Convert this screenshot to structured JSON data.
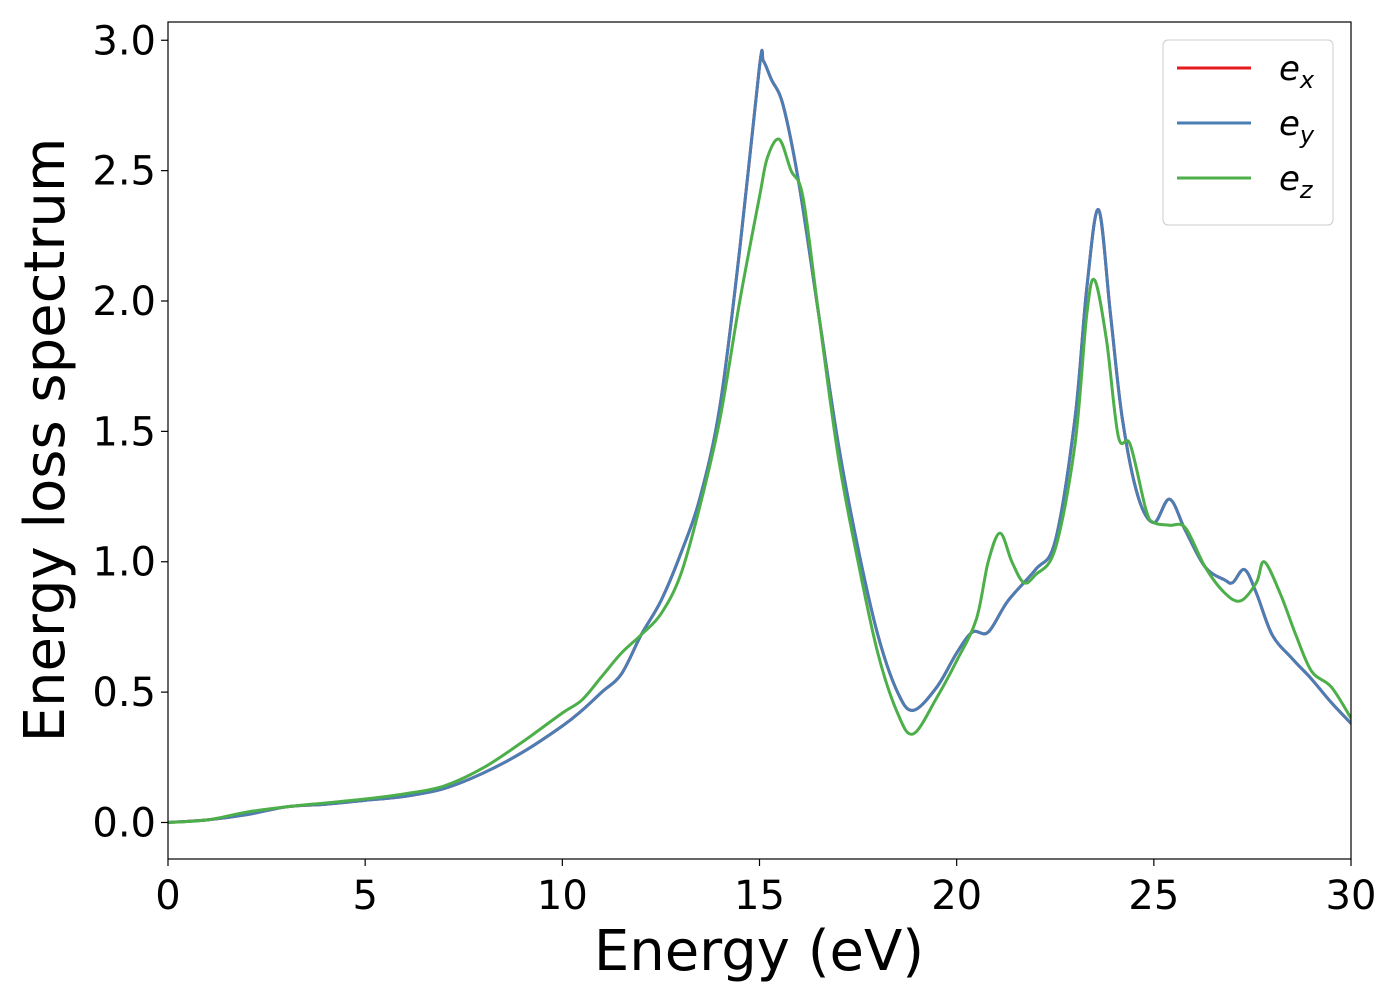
{
  "chart_data": {
    "type": "line",
    "title": "",
    "xlabel": "Energy (eV)",
    "ylabel": "Energy loss spectrum",
    "xlim": [
      0,
      30
    ],
    "ylim": [
      -0.14,
      3.07
    ],
    "xticks": [
      0,
      5,
      10,
      15,
      20,
      25,
      30
    ],
    "xtick_labels": [
      "0",
      "5",
      "10",
      "15",
      "20",
      "25",
      "30"
    ],
    "yticks": [
      0.0,
      0.5,
      1.0,
      1.5,
      2.0,
      2.5,
      3.0
    ],
    "ytick_labels": [
      "0.0",
      "0.5",
      "1.0",
      "1.5",
      "2.0",
      "2.5",
      "3.0"
    ],
    "grid": false,
    "legend_position": "top-right",
    "series": [
      {
        "name": "e",
        "subscript": "x",
        "color": "#e41a1c",
        "x": [
          0,
          1,
          2,
          3,
          4,
          5,
          6,
          7,
          8,
          9,
          10,
          10.5,
          11,
          11.5,
          12,
          12.5,
          13,
          13.5,
          14,
          14.5,
          15,
          15.1,
          15.3,
          15.6,
          16,
          16.5,
          17,
          17.5,
          18,
          18.5,
          18.9,
          19.5,
          20,
          20.4,
          20.8,
          21.3,
          22,
          22.5,
          23,
          23.3,
          23.6,
          23.9,
          24.2,
          24.6,
          25,
          25.4,
          25.8,
          26.3,
          26.8,
          27,
          27.3,
          27.6,
          28,
          28.5,
          29,
          29.5,
          30
        ],
        "y": [
          0.0,
          0.01,
          0.03,
          0.06,
          0.07,
          0.085,
          0.1,
          0.13,
          0.19,
          0.27,
          0.37,
          0.43,
          0.5,
          0.57,
          0.72,
          0.85,
          1.03,
          1.25,
          1.6,
          2.2,
          2.9,
          2.92,
          2.85,
          2.75,
          2.45,
          1.95,
          1.45,
          1.05,
          0.72,
          0.5,
          0.43,
          0.52,
          0.65,
          0.73,
          0.73,
          0.85,
          0.97,
          1.08,
          1.55,
          2.05,
          2.35,
          1.95,
          1.55,
          1.25,
          1.15,
          1.24,
          1.12,
          0.98,
          0.93,
          0.92,
          0.97,
          0.88,
          0.72,
          0.63,
          0.55,
          0.46,
          0.38
        ]
      },
      {
        "name": "e",
        "subscript": "y",
        "color": "#4a7eb4",
        "x": [
          0,
          1,
          2,
          3,
          4,
          5,
          6,
          7,
          8,
          9,
          10,
          10.5,
          11,
          11.5,
          12,
          12.5,
          13,
          13.5,
          14,
          14.5,
          15,
          15.1,
          15.3,
          15.6,
          16,
          16.5,
          17,
          17.5,
          18,
          18.5,
          18.9,
          19.5,
          20,
          20.4,
          20.8,
          21.3,
          22,
          22.5,
          23,
          23.3,
          23.6,
          23.9,
          24.2,
          24.6,
          25,
          25.4,
          25.8,
          26.3,
          26.8,
          27,
          27.3,
          27.6,
          28,
          28.5,
          29,
          29.5,
          30
        ],
        "y": [
          0.0,
          0.01,
          0.03,
          0.06,
          0.07,
          0.085,
          0.1,
          0.13,
          0.19,
          0.27,
          0.37,
          0.43,
          0.5,
          0.57,
          0.72,
          0.85,
          1.03,
          1.25,
          1.6,
          2.2,
          2.9,
          2.92,
          2.85,
          2.75,
          2.45,
          1.95,
          1.45,
          1.05,
          0.72,
          0.5,
          0.43,
          0.52,
          0.65,
          0.73,
          0.73,
          0.85,
          0.97,
          1.08,
          1.55,
          2.05,
          2.35,
          1.95,
          1.55,
          1.25,
          1.15,
          1.24,
          1.12,
          0.98,
          0.93,
          0.92,
          0.97,
          0.88,
          0.72,
          0.63,
          0.55,
          0.46,
          0.38
        ]
      },
      {
        "name": "e",
        "subscript": "z",
        "color": "#4daf4a",
        "x": [
          0,
          1,
          2,
          3,
          4,
          5,
          6,
          7,
          8,
          9,
          10,
          10.5,
          11,
          11.5,
          12,
          12.5,
          13,
          13.5,
          14,
          14.5,
          15,
          15.2,
          15.5,
          15.8,
          16.1,
          16.5,
          17,
          17.5,
          18,
          18.5,
          18.9,
          19.5,
          20,
          20.5,
          20.8,
          21.1,
          21.4,
          21.7,
          22,
          22.5,
          23,
          23.3,
          23.5,
          23.8,
          24.1,
          24.4,
          24.8,
          25,
          25.4,
          25.8,
          26.3,
          26.8,
          27.2,
          27.6,
          27.8,
          28.2,
          28.6,
          29,
          29.5,
          30
        ],
        "y": [
          0.0,
          0.01,
          0.04,
          0.06,
          0.075,
          0.09,
          0.11,
          0.14,
          0.21,
          0.31,
          0.42,
          0.47,
          0.56,
          0.65,
          0.72,
          0.8,
          0.95,
          1.22,
          1.55,
          2.0,
          2.4,
          2.55,
          2.62,
          2.5,
          2.4,
          1.95,
          1.4,
          1.0,
          0.65,
          0.42,
          0.34,
          0.48,
          0.62,
          0.78,
          1.0,
          1.11,
          1.0,
          0.92,
          0.95,
          1.05,
          1.45,
          1.95,
          2.08,
          1.85,
          1.48,
          1.45,
          1.2,
          1.15,
          1.14,
          1.13,
          0.98,
          0.88,
          0.85,
          0.92,
          1.0,
          0.88,
          0.72,
          0.58,
          0.52,
          0.4
        ]
      }
    ]
  }
}
